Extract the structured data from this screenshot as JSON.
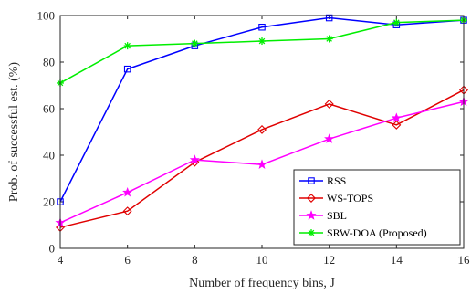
{
  "chart_data": {
    "type": "line",
    "title": "",
    "xlabel": "Number of frequency bins, J",
    "ylabel": "Prob. of successful est. (%)",
    "xlim": [
      4,
      16
    ],
    "ylim": [
      0,
      100
    ],
    "xticks": [
      4,
      6,
      8,
      10,
      12,
      14,
      16
    ],
    "yticks": [
      0,
      20,
      40,
      60,
      80,
      100
    ],
    "grid": false,
    "legend_position": "bottom-right",
    "x": [
      4,
      6,
      8,
      10,
      12,
      14,
      16
    ],
    "series": [
      {
        "name": "RSS",
        "color": "#0000ff",
        "marker": "square",
        "values": [
          20,
          77,
          87,
          95,
          99,
          96,
          98
        ]
      },
      {
        "name": "WS-TOPS",
        "color": "#e00000",
        "marker": "diamond",
        "values": [
          9,
          16,
          37,
          51,
          62,
          53,
          68
        ]
      },
      {
        "name": "SBL",
        "color": "#ff00ff",
        "marker": "star",
        "values": [
          11,
          24,
          38,
          36,
          47,
          56,
          63
        ]
      },
      {
        "name": "SRW-DOA (Proposed)",
        "color": "#00ee00",
        "marker": "asterisk",
        "values": [
          71,
          87,
          88,
          89,
          90,
          97,
          98
        ]
      }
    ]
  }
}
